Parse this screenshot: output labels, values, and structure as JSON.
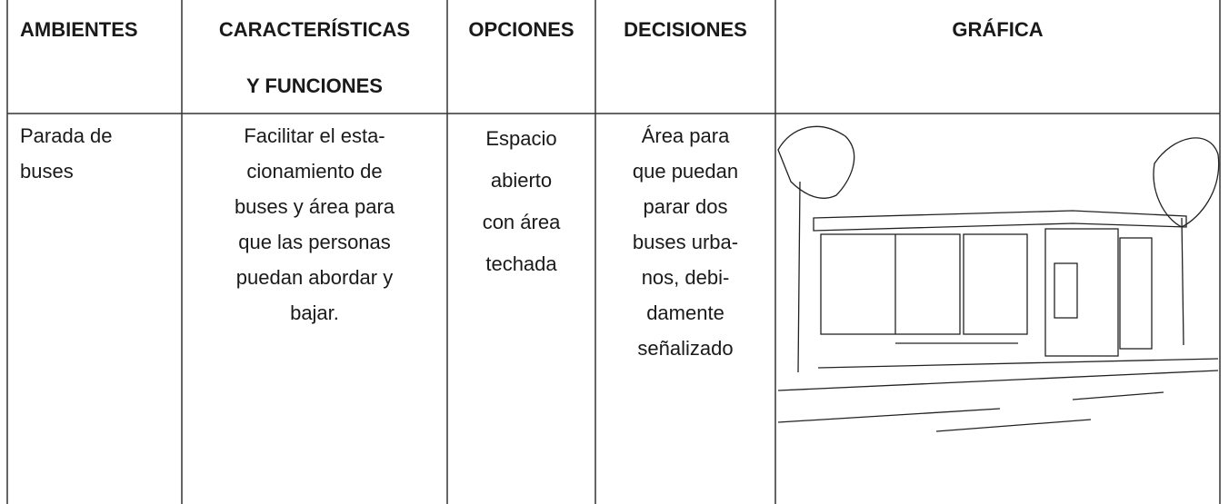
{
  "table": {
    "headers": [
      [
        "AMBIENTES"
      ],
      [
        "CARACTERÍSTICAS",
        "Y FUNCIONES"
      ],
      [
        "OPCIONES"
      ],
      [
        "DECISIONES"
      ],
      [
        "GRÁFICA"
      ]
    ],
    "rows": [
      [
        [
          "Parada de",
          "buses"
        ],
        [
          "Facilitar el esta-",
          "cionamiento de",
          "buses y área para",
          "que las personas",
          "puedan abordar y",
          "bajar."
        ],
        [
          "Espacio",
          "abierto",
          "con área",
          "techada"
        ],
        [
          "Área para",
          "que puedan",
          "parar dos",
          "buses urba-",
          "nos, debi-",
          "damente",
          "señalizado"
        ]
      ]
    ]
  }
}
